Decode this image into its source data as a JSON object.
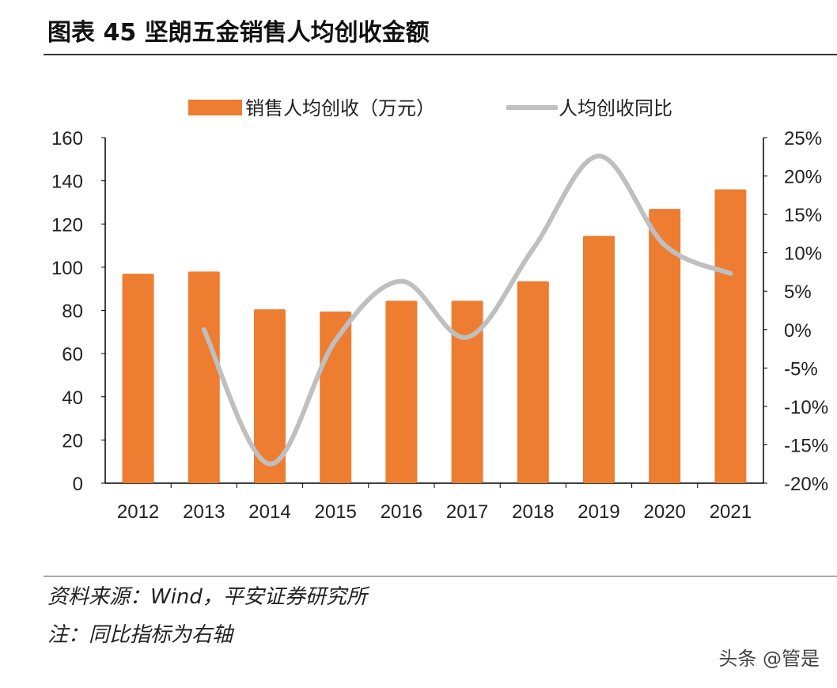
{
  "title": "图表 45 坚朗五金销售人均创收金额",
  "chart_data": {
    "type": "bar+line",
    "categories": [
      "2012",
      "2013",
      "2014",
      "2015",
      "2016",
      "2017",
      "2018",
      "2019",
      "2020",
      "2021"
    ],
    "series": [
      {
        "name": "销售人均创收（万元）",
        "type": "bar",
        "axis": "left",
        "color": "#ED7D31",
        "values": [
          97,
          98,
          80.5,
          79.5,
          84.5,
          84.5,
          93.5,
          114.5,
          127,
          136
        ]
      },
      {
        "name": "人均创收同比",
        "type": "line",
        "axis": "right",
        "color": "#BFBFBF",
        "values": [
          null,
          0.0,
          -17.5,
          -1.4,
          6.3,
          -1.0,
          10.5,
          22.6,
          11.0,
          7.3
        ]
      }
    ],
    "left_axis": {
      "ylim": [
        0,
        160
      ],
      "ticks": [
        "0",
        "20",
        "40",
        "60",
        "80",
        "100",
        "120",
        "140",
        "160"
      ]
    },
    "right_axis": {
      "ylim": [
        -20,
        25
      ],
      "ticks": [
        "-20%",
        "-15%",
        "-10%",
        "-5%",
        "0%",
        "5%",
        "10%",
        "15%",
        "20%",
        "25%"
      ]
    },
    "legend_position": "top",
    "grid": false
  },
  "footer": {
    "source": "资料来源：Wind，平安证券研究所",
    "note": "注：同比指标为右轴"
  },
  "watermark": "头条 @管是"
}
